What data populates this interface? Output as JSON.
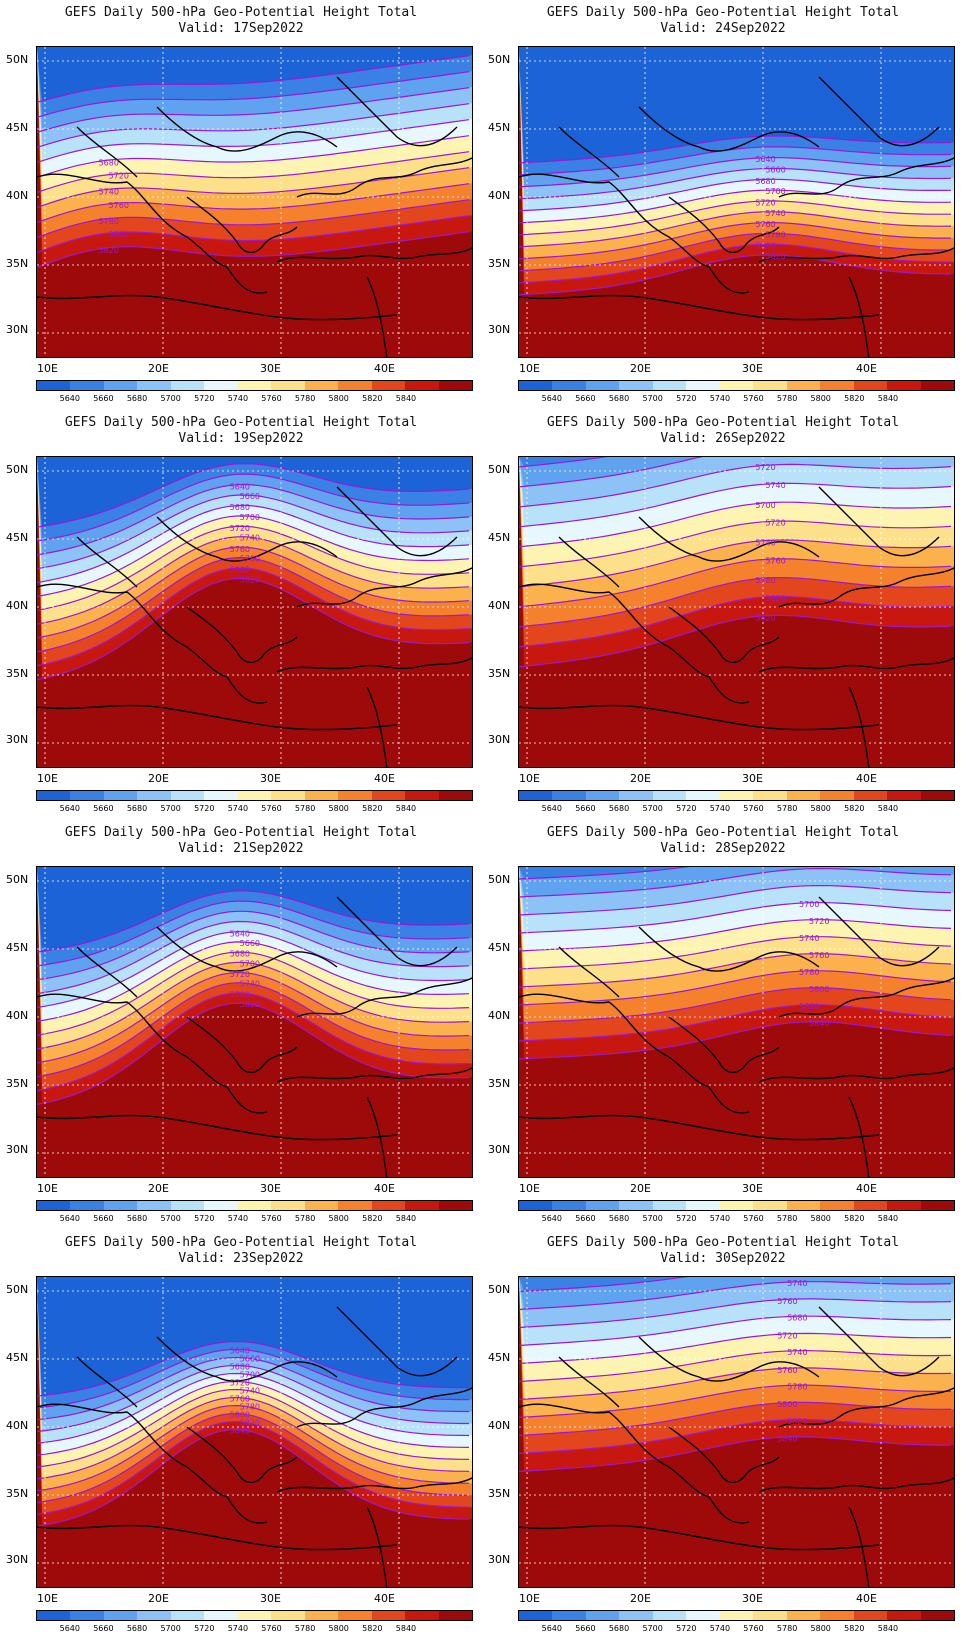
{
  "title": "GEFS Daily 500-hPa Geo-Potential Height Total",
  "valid_prefix": "Valid: ",
  "lat_labels": [
    "50N",
    "45N",
    "40N",
    "35N",
    "30N"
  ],
  "lon_labels": [
    "10E",
    "20E",
    "30E",
    "40E"
  ],
  "colorbar": {
    "colors": [
      "#1b63d6",
      "#3a81e6",
      "#5fa2f0",
      "#8cc2f5",
      "#b8e2f9",
      "#e6f8fd",
      "#fdf4b2",
      "#fde08a",
      "#fbb24c",
      "#f6812c",
      "#e3461d",
      "#c8170f",
      "#9e0a0a"
    ],
    "labels": [
      "5640",
      "5660",
      "5680",
      "5700",
      "5720",
      "5740",
      "5760",
      "5780",
      "5800",
      "5820",
      "5840"
    ]
  },
  "panels": [
    {
      "date": "17Sep2022",
      "contour_labels": [
        "5680",
        "5720",
        "5740",
        "5760",
        "5780",
        "5800",
        "5820"
      ]
    },
    {
      "date": "24Sep2022",
      "contour_labels": [
        "5640",
        "5660",
        "5680",
        "5700",
        "5720",
        "5740",
        "5760",
        "5780",
        "5800",
        "5820"
      ]
    },
    {
      "date": "19Sep2022",
      "contour_labels": [
        "5640",
        "5660",
        "5680",
        "5700",
        "5720",
        "5740",
        "5760",
        "5780",
        "5800",
        "5820"
      ]
    },
    {
      "date": "26Sep2022",
      "contour_labels": [
        "5720",
        "5740",
        "5700",
        "5720",
        "5740",
        "5760",
        "5780",
        "5800",
        "5820"
      ]
    },
    {
      "date": "21Sep2022",
      "contour_labels": [
        "5640",
        "5660",
        "5680",
        "5700",
        "5720",
        "5740",
        "5780",
        "5820"
      ]
    },
    {
      "date": "28Sep2022",
      "contour_labels": [
        "5700",
        "5720",
        "5740",
        "5760",
        "5780",
        "5800",
        "5820",
        "5840"
      ]
    },
    {
      "date": "23Sep2022",
      "contour_labels": [
        "5640",
        "5660",
        "5680",
        "5700",
        "5720",
        "5740",
        "5760",
        "5780",
        "5800",
        "5820",
        "5840"
      ]
    },
    {
      "date": "30Sep2022",
      "contour_labels": [
        "5700",
        "5740",
        "5760",
        "5680",
        "5720",
        "5740",
        "5760",
        "5780",
        "5800",
        "5820",
        "5840"
      ]
    }
  ]
}
